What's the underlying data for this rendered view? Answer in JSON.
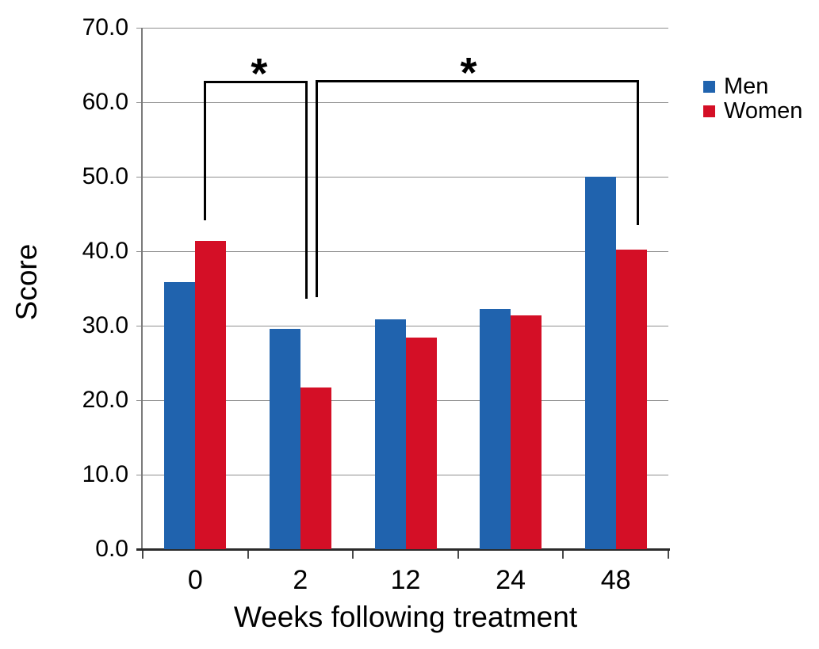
{
  "chart_data": {
    "type": "bar",
    "title": "",
    "xlabel": "Weeks following treatment",
    "ylabel": "Score",
    "categories": [
      "0",
      "2",
      "12",
      "24",
      "48"
    ],
    "series": [
      {
        "name": "Men",
        "color": "#2063ae",
        "values": [
          35.9,
          29.6,
          30.8,
          32.2,
          50.0
        ]
      },
      {
        "name": "Women",
        "color": "#d40f26",
        "values": [
          41.4,
          21.7,
          28.4,
          31.4,
          40.2
        ]
      }
    ],
    "ylim": [
      0,
      70
    ],
    "y_ticks": [
      {
        "value": 0,
        "label": "0.0"
      },
      {
        "value": 10,
        "label": "10.0"
      },
      {
        "value": 20,
        "label": "20.0"
      },
      {
        "value": 30,
        "label": "30.0"
      },
      {
        "value": 40,
        "label": "40.0"
      },
      {
        "value": 50,
        "label": "50.0"
      },
      {
        "value": 60,
        "label": "60.0"
      },
      {
        "value": 70,
        "label": "70.0"
      }
    ],
    "grid": true,
    "legend_position": "right",
    "annotations": [
      {
        "type": "bracket",
        "label": "*",
        "x1_cat": 0.581,
        "x2_cat": 1.546,
        "top": 62.9,
        "left_drop": 44.1,
        "right_drop": 33.6,
        "label_x_cat": 1.108
      },
      {
        "type": "bracket",
        "label": "*",
        "x1_cat": 1.644,
        "x2_cat": 4.698,
        "top": 63.0,
        "left_drop": 33.8,
        "right_drop": 43.5,
        "label_x_cat": 3.1
      }
    ]
  }
}
